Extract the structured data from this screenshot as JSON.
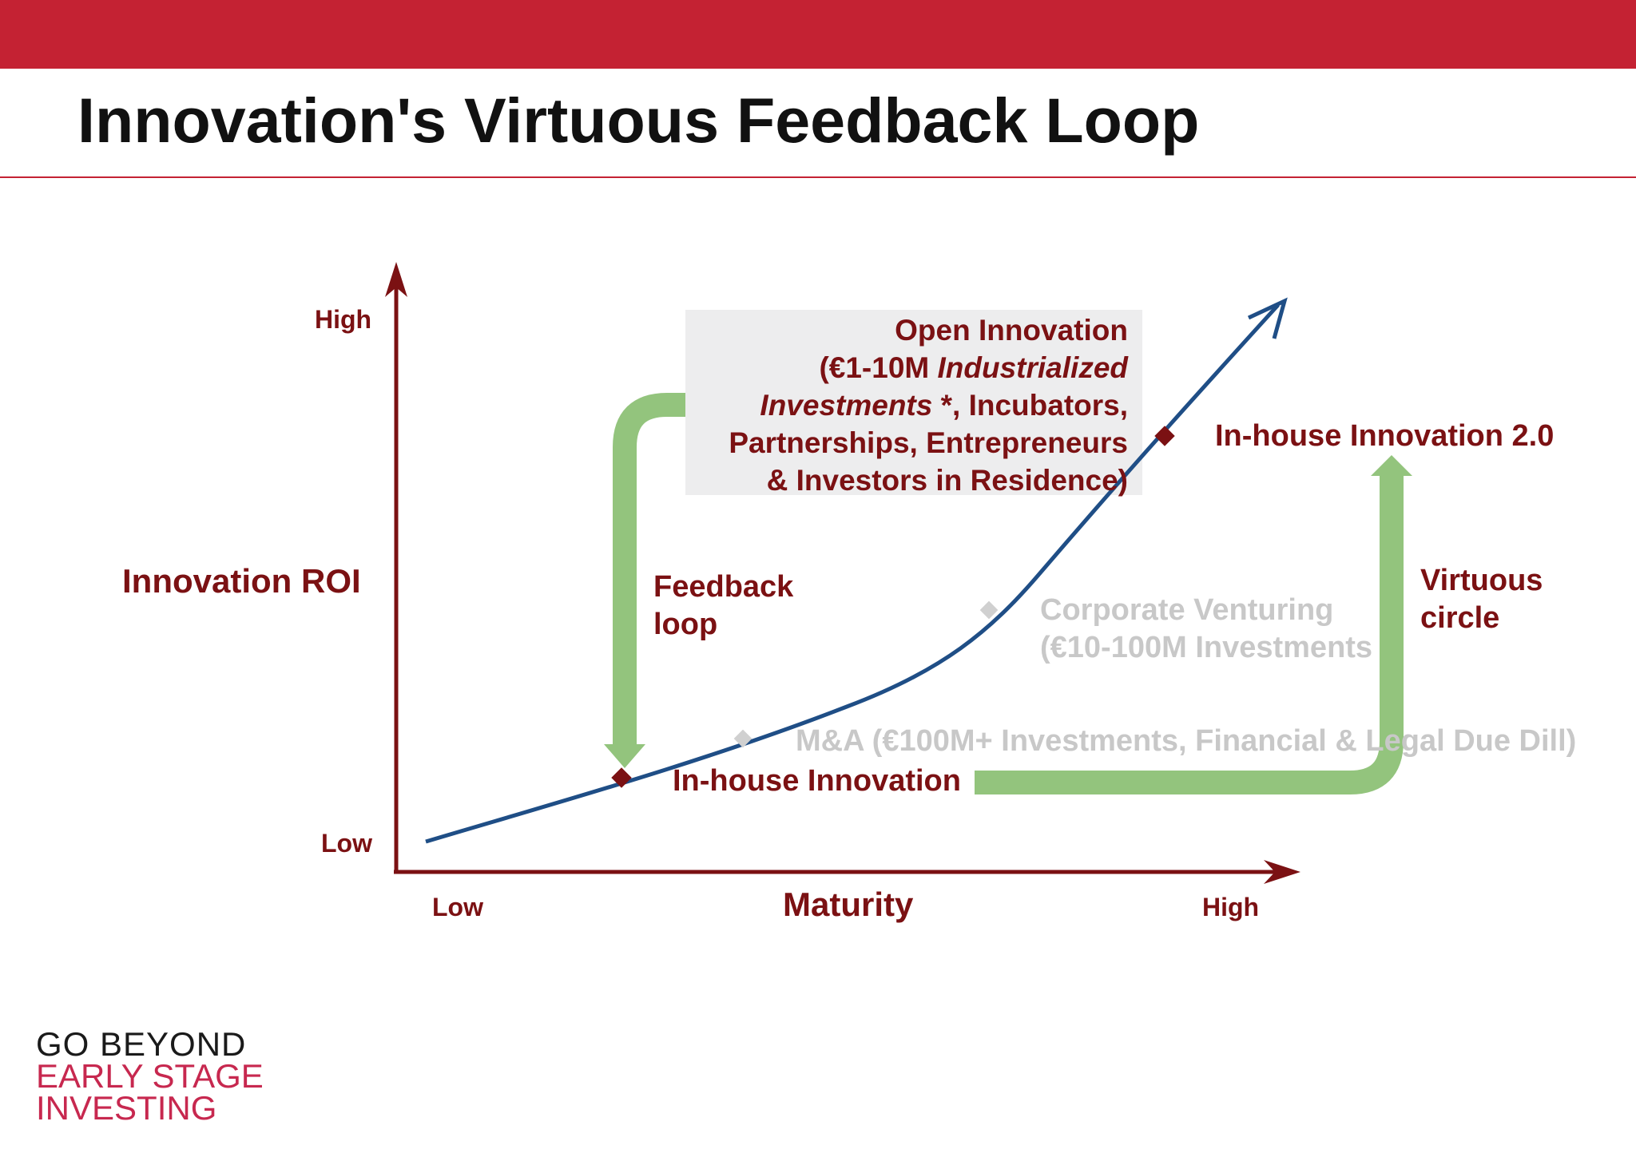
{
  "slide": {
    "title": "Innovation's Virtuous Feedback Loop"
  },
  "axes": {
    "y_title": "Innovation ROI",
    "y_high": "High",
    "y_low": "Low",
    "x_title": "Maturity",
    "x_low": "Low",
    "x_high": "High"
  },
  "labels": {
    "open_innovation": {
      "line1": "Open Innovation",
      "line2_prefix": "(€1-10M ",
      "line2_italic": "Industrialized",
      "line3_italic": "Investments",
      "line3_suffix": " *, Incubators,",
      "line4": "Partnerships, Entrepreneurs",
      "line5": "& Investors in Residence)"
    },
    "inhouse_2": "In-house Innovation 2.0",
    "feedback_line1": "Feedback",
    "feedback_line2": "loop",
    "virtuous_line1": "Virtuous",
    "virtuous_line2": "circle",
    "corporate_venturing_line1": "Corporate Venturing",
    "corporate_venturing_line2": "(€10-100M Investments",
    "ma": "M&A (€100M+ Investments, Financial & Legal Due Dill)",
    "inhouse": "In-house Innovation"
  },
  "logo": {
    "line1": "GO BEYOND",
    "line2": "EARLY STAGE",
    "line3": "INVESTING"
  },
  "colors": {
    "brand_red": "#c42233",
    "label_dark_red": "#7b1113",
    "curve_blue": "#1f4e86",
    "arrow_green": "#93c47d",
    "muted_gray": "#c8c8c8",
    "logo_pink": "#c7284f"
  }
}
